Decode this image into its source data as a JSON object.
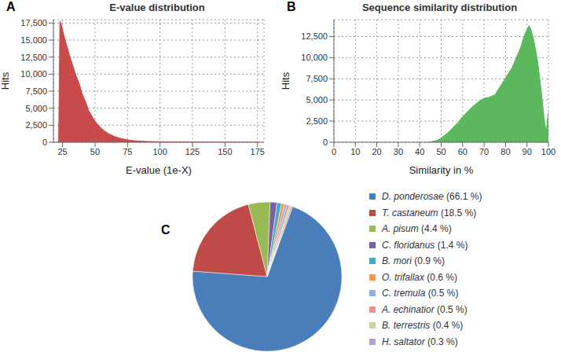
{
  "chart_data": [
    {
      "type": "area",
      "panel": "A",
      "title": "E-value distribution",
      "x_label": "E-value (1e-X)",
      "y_label": "Hits",
      "x": [
        20,
        22,
        23,
        24,
        25,
        27,
        30,
        33,
        35,
        38,
        40,
        43,
        45,
        48,
        50,
        55,
        60,
        65,
        70,
        75,
        80,
        90,
        100,
        110,
        125,
        150,
        175
      ],
      "values": [
        0,
        0,
        17800,
        17300,
        16500,
        15000,
        13000,
        11200,
        10000,
        8500,
        7200,
        5800,
        4700,
        3700,
        3100,
        2000,
        1300,
        850,
        550,
        350,
        220,
        110,
        70,
        45,
        25,
        12,
        5
      ],
      "color": "#c94a4a",
      "xlim": [
        18,
        180
      ],
      "xticks": [
        25,
        50,
        75,
        100,
        125,
        150,
        175
      ],
      "ylim": [
        0,
        18000
      ],
      "yticks": [
        0,
        {
          "value": 2500,
          "label": "2,500"
        },
        {
          "value": 5000,
          "label": "5,000"
        },
        {
          "value": 7500,
          "label": "7,500"
        },
        {
          "value": 10000,
          "label": "10,000"
        },
        {
          "value": 12500,
          "label": "12,500"
        },
        {
          "value": 15000,
          "label": "15,000"
        },
        {
          "value": 17500,
          "label": "17,500"
        }
      ],
      "grid": true
    },
    {
      "type": "area",
      "panel": "B",
      "title": "Sequence similarity distribution",
      "x_label": "Similarity in %",
      "y_label": "Hits",
      "x": [
        44,
        48,
        50,
        53,
        55,
        58,
        60,
        63,
        65,
        68,
        70,
        72,
        75,
        78,
        80,
        83,
        85,
        87,
        88,
        89,
        90,
        91,
        92,
        93,
        94,
        95,
        96,
        97,
        98,
        99,
        99.5,
        100
      ],
      "values": [
        0,
        200,
        500,
        1100,
        1600,
        2400,
        3000,
        3800,
        4300,
        4900,
        5200,
        5300,
        5600,
        6800,
        7600,
        8800,
        10000,
        11200,
        12000,
        12800,
        13300,
        13800,
        13200,
        12300,
        11000,
        9500,
        7500,
        5200,
        2800,
        1200,
        2500,
        3600
      ],
      "color": "#5cb85c",
      "xlim": [
        0,
        100
      ],
      "xticks": [
        0,
        10,
        20,
        30,
        40,
        50,
        60,
        70,
        80,
        90,
        100
      ],
      "ylim": [
        0,
        14500
      ],
      "yticks": [
        0,
        {
          "value": 2500,
          "label": "2,500"
        },
        {
          "value": 5000,
          "label": "5,000"
        },
        {
          "value": 7500,
          "label": "7,500"
        },
        {
          "value": 10000,
          "label": "10,000"
        },
        {
          "value": 12500,
          "label": "12,500"
        }
      ],
      "grid": true
    },
    {
      "type": "pie",
      "panel": "C",
      "categories": [
        "D. ponderosae (66.1 %)",
        "T. castaneum (18.5 %)",
        "A. pisum (4.4 %)",
        "C. floridanus (1.4 %)",
        "B. mori (0.9 %)",
        "O. trifallax (0.6 %)",
        "C. tremula (0.5 %)",
        "A. echinatior (0.5 %)",
        "B. terrestris (0.4 %)",
        "H. saltator (0.3 %)"
      ],
      "values": [
        66.1,
        18.5,
        4.4,
        1.4,
        0.9,
        0.6,
        0.5,
        0.5,
        0.4,
        0.3
      ],
      "colors": [
        "#4a7ebb",
        "#be4b48",
        "#98b954",
        "#7d60a0",
        "#46aac5",
        "#f79646",
        "#8cb0e0",
        "#e59492",
        "#c3d69b",
        "#b3a2c7"
      ],
      "legend": "right"
    }
  ]
}
